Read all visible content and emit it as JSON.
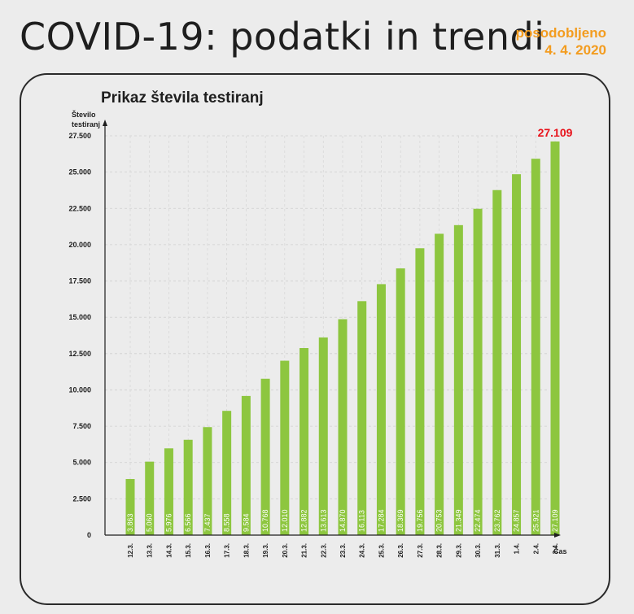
{
  "header": {
    "title": "COVID-19: podatki in trendi",
    "updated_label": "posodobljeno",
    "updated_date": "4. 4. 2020"
  },
  "chart_data": {
    "type": "bar",
    "title": "Prikaz števila testiranj",
    "ylabel_line1": "Število",
    "ylabel_line2": "testiranj",
    "xlabel": "Čas",
    "ylim": [
      0,
      27500
    ],
    "yticks": [
      0,
      2500,
      5000,
      7500,
      10000,
      12500,
      15000,
      17500,
      20000,
      22500,
      25000,
      27500
    ],
    "ytick_labels": [
      "0",
      "2.500",
      "5.000",
      "7.500",
      "10.000",
      "12.500",
      "15.000",
      "17.500",
      "20.000",
      "22.500",
      "25.000",
      "27.500"
    ],
    "categories": [
      "12.3.",
      "13.3.",
      "14.3.",
      "15.3.",
      "16.3.",
      "17.3.",
      "18.3.",
      "19.3.",
      "20.3.",
      "21.3.",
      "22.3.",
      "23.3.",
      "24.3.",
      "25.3.",
      "26.3.",
      "27.3.",
      "28.3.",
      "29.3.",
      "30.3.",
      "31.3.",
      "1.4.",
      "2.4.",
      "3.4."
    ],
    "values": [
      3863,
      5060,
      5976,
      6566,
      7437,
      8558,
      9584,
      10768,
      12010,
      12882,
      13613,
      14870,
      16113,
      17284,
      18369,
      19756,
      20753,
      21349,
      22474,
      23762,
      24857,
      25921,
      27109
    ],
    "value_labels": [
      "3.863",
      "5.060",
      "5.976",
      "6.566",
      "7.437",
      "8.558",
      "9.584",
      "10.768",
      "12.010",
      "12.882",
      "13.613",
      "14.870",
      "16.113",
      "17.284",
      "18.369",
      "19.756",
      "20.753",
      "21.349",
      "22.474",
      "23.762",
      "24.857",
      "25.921",
      "27.109"
    ],
    "highlight_label": "27.109",
    "grid": true,
    "bar_color": "#8dc63f",
    "highlight_color": "#e8121a"
  }
}
